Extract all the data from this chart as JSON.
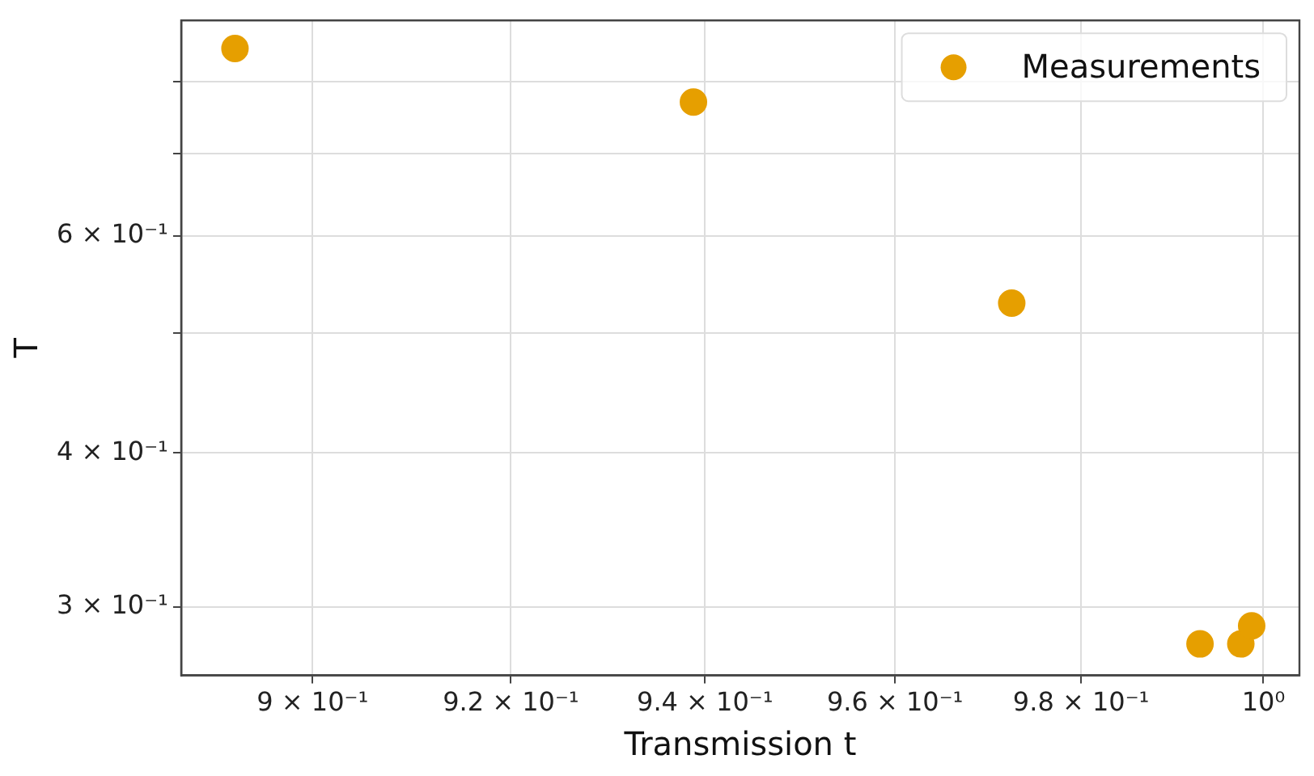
{
  "chart_data": {
    "type": "scatter",
    "xlabel": "Transmission t",
    "ylabel": "T",
    "log": "xy",
    "xlim": [
      0.887,
      1.004
    ],
    "ylim": [
      0.264,
      0.897
    ],
    "xticks": [
      {
        "value": 0.9,
        "label": "9 × 10⁻¹"
      },
      {
        "value": 0.92,
        "label": "9.2 × 10⁻¹"
      },
      {
        "value": 0.94,
        "label": "9.4 × 10⁻¹"
      },
      {
        "value": 0.96,
        "label": "9.6 × 10⁻¹"
      },
      {
        "value": 0.98,
        "label": "9.8 × 10⁻¹"
      },
      {
        "value": 1,
        "label": "10⁰"
      }
    ],
    "yticks": [
      {
        "value": 0.3,
        "label": "3 × 10⁻¹"
      },
      {
        "value": 0.4,
        "label": "4 × 10⁻¹"
      },
      {
        "value": 0.5,
        "label": null
      },
      {
        "value": 0.6,
        "label": "6 × 10⁻¹"
      },
      {
        "value": 0.7,
        "label": null
      },
      {
        "value": 0.8,
        "label": null
      }
    ],
    "grid": true,
    "legend": "top right",
    "marker": "circle",
    "series": [
      {
        "name": "Measurements",
        "color": "#e69f00",
        "x": [
          0.8923,
          0.9388,
          0.9725,
          0.993,
          0.9975,
          0.9987
        ],
        "values": [
          0.851,
          0.77,
          0.529,
          0.28,
          0.28,
          0.2896
        ]
      }
    ]
  }
}
